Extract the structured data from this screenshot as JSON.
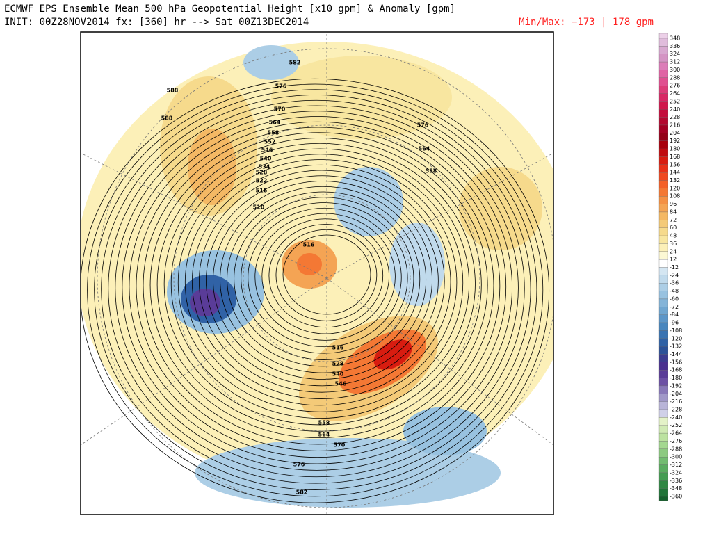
{
  "header": {
    "title": "ECMWF EPS Ensemble Mean 500 hPa Geopotential Height [x10 gpm] & Anomaly [gpm]",
    "init": "INIT: 00Z28NOV2014 fx: [360] hr --> Sat 00Z13DEC2014",
    "min_max": "Min/Max:  −173 |  178 gpm"
  },
  "colorbar": {
    "levels": [
      348,
      336,
      324,
      312,
      300,
      288,
      276,
      264,
      252,
      240,
      228,
      216,
      204,
      192,
      180,
      168,
      156,
      144,
      132,
      120,
      108,
      96,
      84,
      72,
      60,
      48,
      36,
      24,
      12,
      -12,
      -24,
      -36,
      -48,
      -60,
      -72,
      -84,
      -96,
      -108,
      -120,
      -132,
      -144,
      -156,
      -168,
      -180,
      -192,
      -204,
      -216,
      -228,
      -240,
      -252,
      -264,
      -276,
      -288,
      -300,
      -312,
      -324,
      -336,
      -348,
      -360
    ],
    "colors": [
      "#ecd0e8",
      "#e0bcdc",
      "#d8a8d0",
      "#d494c4",
      "#dc7cb8",
      "#e064a4",
      "#e05090",
      "#dc3c78",
      "#d82864",
      "#d0184c",
      "#c40c3c",
      "#b40830",
      "#a40024",
      "#940018",
      "#a8000c",
      "#c00c10",
      "#d81c10",
      "#e83018",
      "#f04820",
      "#f46028",
      "#f47834",
      "#f49044",
      "#f4a454",
      "#f4b864",
      "#f4ca78",
      "#f6da8c",
      "#f8e6a0",
      "#fcf0b8",
      "#fcf8d4",
      "#ffffff",
      "#d4e6f2",
      "#c0daec",
      "#accee6",
      "#98c2e0",
      "#84b4d8",
      "#70a6d0",
      "#5c96c8",
      "#4886be",
      "#3a74b2",
      "#3062a6",
      "#2c5298",
      "#3c3c90",
      "#4a3090",
      "#5a3c98",
      "#6c50a4",
      "#8878b8",
      "#a098c8",
      "#b8b4d8",
      "#d0d0e8",
      "#e4f2c8",
      "#d0eab4",
      "#bce2a0",
      "#a4d890",
      "#8cca80",
      "#72bc70",
      "#5aac60",
      "#449c52",
      "#308844",
      "#207438",
      "#14602c"
    ]
  },
  "map": {
    "contour_labels": [
      "588",
      "576",
      "570",
      "564",
      "558",
      "552",
      "546",
      "540",
      "534",
      "528",
      "522",
      "516",
      "510",
      "516",
      "582",
      "576",
      "564",
      "558",
      "588",
      "570",
      "564",
      "558",
      "546",
      "540",
      "528",
      "516",
      "576",
      "582"
    ]
  }
}
